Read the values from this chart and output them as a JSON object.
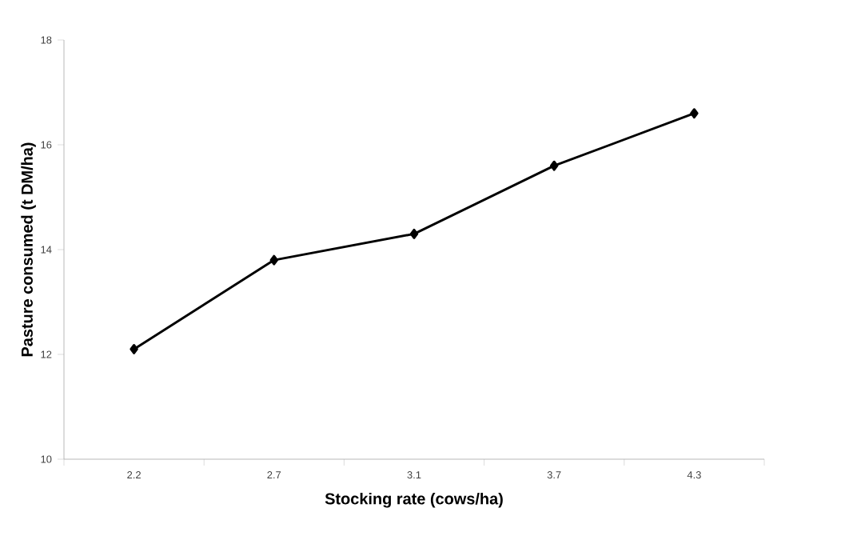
{
  "chart_data": {
    "type": "line",
    "xlabel": "Stocking rate (cows/ha)",
    "ylabel": "Pasture consumed (t DM/ha)",
    "categories": [
      "2.2",
      "2.7",
      "3.1",
      "3.7",
      "4.3"
    ],
    "series": [
      {
        "color": "#000000",
        "values": [
          12.1,
          13.8,
          14.3,
          15.6,
          16.6
        ]
      }
    ],
    "ylim": [
      10,
      18
    ],
    "yticks": [
      10,
      12,
      14,
      16,
      18
    ],
    "marker": "diamond",
    "line_style": "solid",
    "grid": false
  }
}
